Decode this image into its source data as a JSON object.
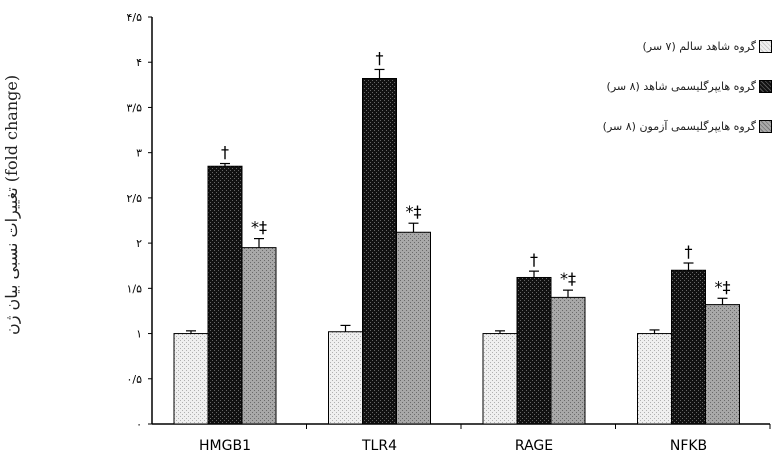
{
  "chart_data": {
    "type": "bar",
    "categories": [
      "HMGB1",
      "TLR4",
      "RAGE",
      "NFKB"
    ],
    "ylabel": "تغییرات نسبی بیان ژن (fold change)",
    "ylim": [
      0,
      4.5
    ],
    "yticks": [
      0,
      0.5,
      1,
      1.5,
      2,
      2.5,
      3,
      3.5,
      4,
      4.5
    ],
    "ytick_labels": [
      "۰",
      "۰/۵",
      "۱",
      "۱/۵",
      "۲",
      "۲/۵",
      "۳",
      "۳/۵",
      "۴",
      "۴/۵"
    ],
    "legend_position": "top-right",
    "series": [
      {
        "name": "گروه شاهد سالم (۷ سر)",
        "values": [
          1.0,
          1.02,
          1.0,
          1.0
        ],
        "errors": [
          0.03,
          0.07,
          0.03,
          0.04
        ],
        "color": "#dcdcdc",
        "marks": [
          "",
          "",
          "",
          ""
        ]
      },
      {
        "name": "گروه هایپرگلیسمی شاهد (۸ سر)",
        "values": [
          2.85,
          3.82,
          1.62,
          1.7
        ],
        "errors": [
          0.03,
          0.1,
          0.07,
          0.08
        ],
        "color": "#1a1a1a",
        "marks": [
          "†",
          "†",
          "†",
          "†"
        ]
      },
      {
        "name": "گروه هایپرگلیسمی آزمون (۸ سر)",
        "values": [
          1.95,
          2.12,
          1.4,
          1.32
        ],
        "errors": [
          0.1,
          0.1,
          0.08,
          0.07
        ],
        "color": "#9a9a9a",
        "marks": [
          "*‡",
          "*‡",
          "*‡",
          "*‡"
        ]
      }
    ]
  }
}
